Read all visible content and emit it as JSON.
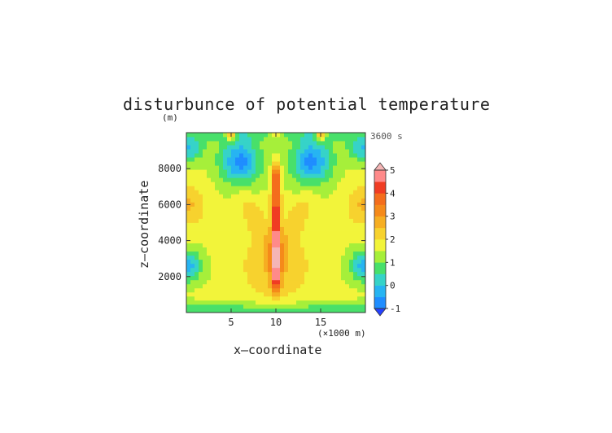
{
  "title": "disturbunce of potential temperature",
  "units": "(m)",
  "time_label": "3600 s",
  "chart_data": {
    "type": "heatmap",
    "title": "disturbunce of potential temperature",
    "xlabel": "x—coordinate",
    "ylabel": "z—coordinate",
    "x_unit_label": "(×1000 m)",
    "z_unit_label": "(m)",
    "time": "3600 s",
    "xlim": [
      0,
      20
    ],
    "ylim": [
      0,
      10000
    ],
    "x_ticks": [
      "5",
      "10",
      "15"
    ],
    "x_tick_values": [
      5,
      10,
      15
    ],
    "y_ticks": [
      "2000",
      "4000",
      "6000",
      "8000"
    ],
    "y_tick_values": [
      2000,
      4000,
      6000,
      8000
    ],
    "colorbar": {
      "min": -1,
      "max": 5,
      "step": 0.5,
      "labels": [
        "-1",
        "0",
        "1",
        "2",
        "3",
        "4",
        "5"
      ],
      "colors": [
        "#2541ff",
        "#1f8dff",
        "#27b4f2",
        "#36d3c8",
        "#48e06a",
        "#a6ef3a",
        "#f2f43a",
        "#f7d22e",
        "#f6ae22",
        "#f58a1a",
        "#f46d1c",
        "#f03c23",
        "#ff8a8a",
        "#f5b5b5"
      ]
    },
    "features": {
      "plume_center_x": 10,
      "plume_max": 4.5,
      "plume_top_z": 8000,
      "upper_cold_lobes_x": [
        6,
        14
      ],
      "upper_cold_lobes_z": 8400,
      "side_cold_z": 2600,
      "lower_warm_lobes_z": 2400
    }
  }
}
